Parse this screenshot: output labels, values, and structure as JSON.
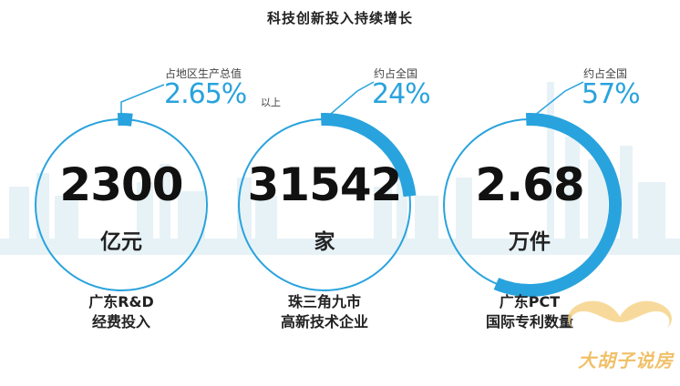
{
  "title": "科技创新投入持续增长",
  "colors": {
    "accent": "#29a3dd",
    "ring": "#29a3dd",
    "text": "#1a1a1a",
    "watermark": "#f0c068"
  },
  "stats": [
    {
      "value": "2300",
      "unit": "亿元",
      "caption": "占地区生产总值",
      "percent": "2.65%",
      "suffix": "以上",
      "label_line1": "广东R&D",
      "label_line2": "经费投入",
      "share": 0.0265
    },
    {
      "value": "31542",
      "unit": "家",
      "caption": "约占全国",
      "percent": "24%",
      "suffix": "",
      "label_line1": "珠三角九市",
      "label_line2": "高新技术企业",
      "share": 0.24
    },
    {
      "value": "2.68",
      "unit": "万件",
      "caption": "约占全国",
      "percent": "57%",
      "suffix": "",
      "label_line1": "广东PCT",
      "label_line2": "国际专利数量",
      "share": 0.57
    }
  ],
  "watermark": "大胡子说房"
}
